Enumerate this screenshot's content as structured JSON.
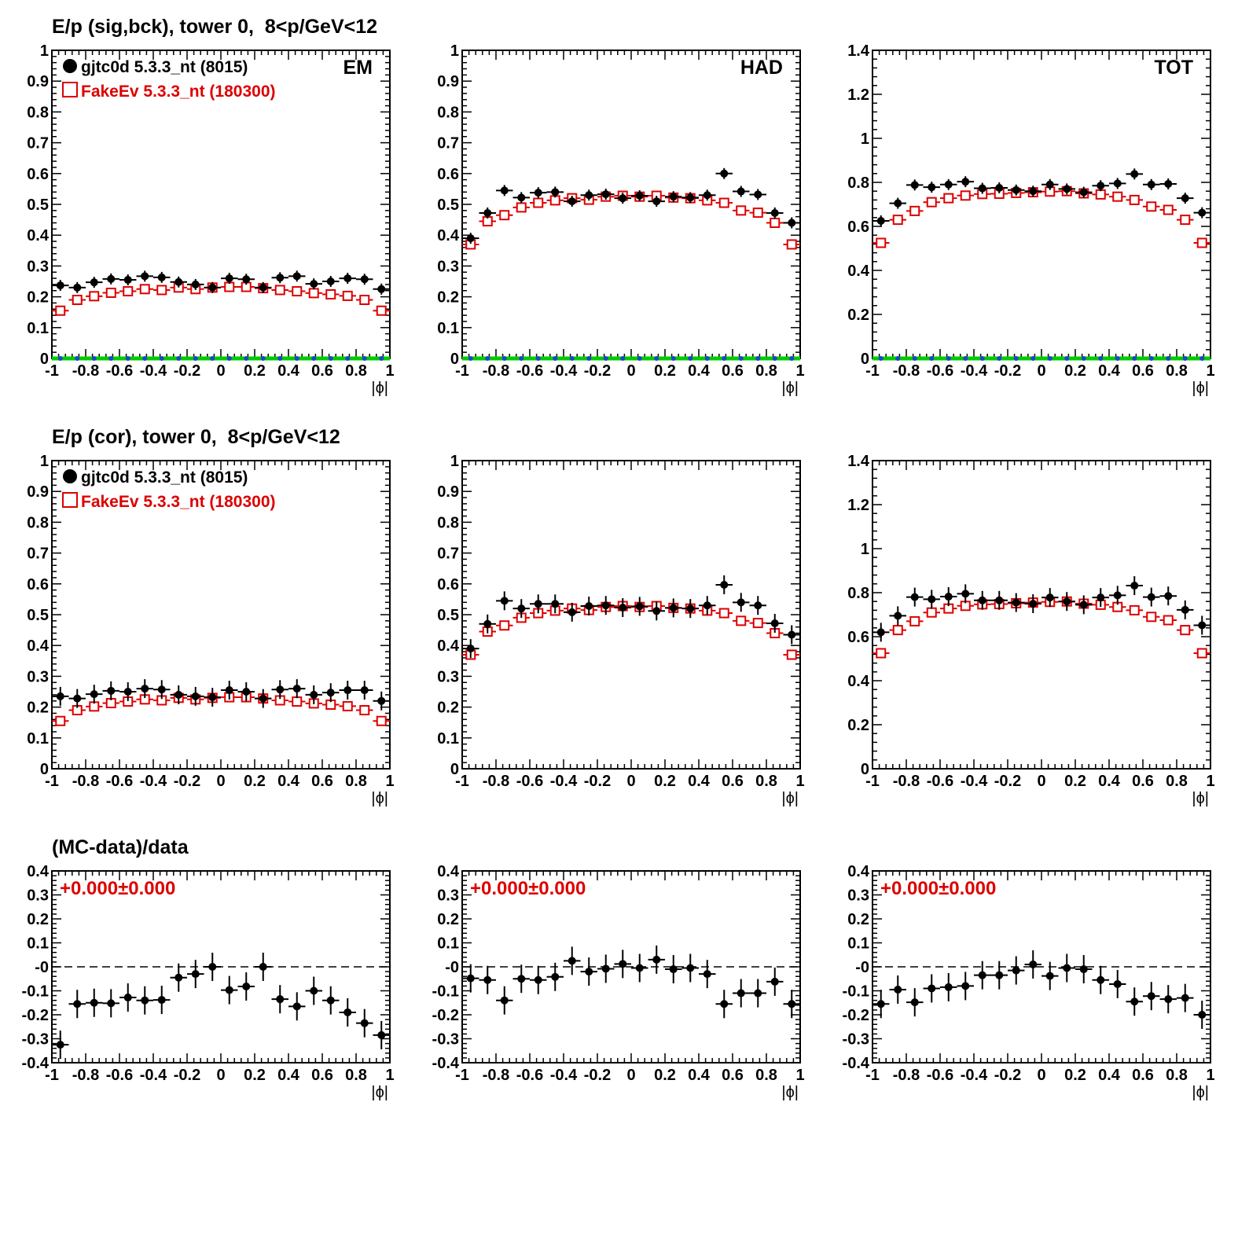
{
  "section_titles": {
    "row1": "E/p (sig,bck), tower 0,  8<p/GeV<12",
    "row2": "E/p (cor), tower 0,  8<p/GeV<12",
    "row3": "(MC-data)/data"
  },
  "legend": {
    "data_label": "gjtc0d 5.3.3_nt (8015)",
    "mc_label": "FakeEv 5.3.3_nt (180300)"
  },
  "panel_labels": {
    "em": "EM",
    "had": "HAD",
    "tot": "TOT"
  },
  "ratio_annotation": "+0.000±0.000",
  "x_axis_label": "|ϕ|",
  "colors": {
    "data": "#000000",
    "mc": "#dd0000",
    "zero_line": "#00cc00",
    "zero_marker": "#2244cc",
    "annotation": "#dd0000"
  },
  "chart_data": [
    {
      "id": "em_sigbck",
      "type": "scatter",
      "x_centers": [
        -0.95,
        -0.85,
        -0.75,
        -0.65,
        -0.55,
        -0.45,
        -0.35,
        -0.25,
        -0.15,
        -0.05,
        0.05,
        0.15,
        0.25,
        0.35,
        0.45,
        0.55,
        0.65,
        0.75,
        0.85,
        0.95
      ],
      "xlim": [
        -1,
        1
      ],
      "ylim": [
        0,
        1
      ],
      "xticks": [
        "-1",
        "-0.8",
        "-0.6",
        "-0.4",
        "-0.2",
        "0",
        "0.2",
        "0.4",
        "0.6",
        "0.8",
        "1"
      ],
      "yticks": [
        "0",
        "0.1",
        "0.2",
        "0.3",
        "0.4",
        "0.5",
        "0.6",
        "0.7",
        "0.8",
        "0.9",
        "1"
      ],
      "series": [
        {
          "name": "gjtc0d 5.3.3_nt (8015)",
          "values": [
            0.237,
            0.23,
            0.247,
            0.258,
            0.255,
            0.267,
            0.263,
            0.248,
            0.24,
            0.23,
            0.26,
            0.257,
            0.23,
            0.262,
            0.267,
            0.242,
            0.25,
            0.26,
            0.257,
            0.225
          ]
        },
        {
          "name": "FakeEv 5.3.3_nt (180300)",
          "values": [
            0.155,
            0.19,
            0.202,
            0.213,
            0.218,
            0.225,
            0.222,
            0.23,
            0.225,
            0.23,
            0.232,
            0.232,
            0.228,
            0.222,
            0.218,
            0.212,
            0.208,
            0.203,
            0.19,
            0.155
          ]
        }
      ],
      "zero_series": true
    },
    {
      "id": "had_sigbck",
      "type": "scatter",
      "x_centers": [
        -0.95,
        -0.85,
        -0.75,
        -0.65,
        -0.55,
        -0.45,
        -0.35,
        -0.25,
        -0.15,
        -0.05,
        0.05,
        0.15,
        0.25,
        0.35,
        0.45,
        0.55,
        0.65,
        0.75,
        0.85,
        0.95
      ],
      "xlim": [
        -1,
        1
      ],
      "ylim": [
        0,
        1
      ],
      "xticks": [
        "-1",
        "-0.8",
        "-0.6",
        "-0.4",
        "-0.2",
        "0",
        "0.2",
        "0.4",
        "0.6",
        "0.8",
        "1"
      ],
      "yticks": [
        "0",
        "0.1",
        "0.2",
        "0.3",
        "0.4",
        "0.5",
        "0.6",
        "0.7",
        "0.8",
        "0.9",
        "1"
      ],
      "series": [
        {
          "name": "gjtc0d 5.3.3_nt (8015)",
          "values": [
            0.39,
            0.472,
            0.545,
            0.522,
            0.538,
            0.54,
            0.51,
            0.53,
            0.533,
            0.52,
            0.528,
            0.51,
            0.525,
            0.522,
            0.53,
            0.6,
            0.542,
            0.532,
            0.472,
            0.44
          ]
        },
        {
          "name": "FakeEv 5.3.3_nt (180300)",
          "values": [
            0.37,
            0.445,
            0.465,
            0.49,
            0.505,
            0.513,
            0.52,
            0.515,
            0.525,
            0.528,
            0.525,
            0.528,
            0.522,
            0.52,
            0.513,
            0.505,
            0.48,
            0.473,
            0.44,
            0.37
          ]
        }
      ],
      "zero_series": true
    },
    {
      "id": "tot_sigbck",
      "type": "scatter",
      "x_centers": [
        -0.95,
        -0.85,
        -0.75,
        -0.65,
        -0.55,
        -0.45,
        -0.35,
        -0.25,
        -0.15,
        -0.05,
        0.05,
        0.15,
        0.25,
        0.35,
        0.45,
        0.55,
        0.65,
        0.75,
        0.85,
        0.95
      ],
      "xlim": [
        -1,
        1
      ],
      "ylim": [
        0,
        1.4
      ],
      "xticks": [
        "-1",
        "-0.8",
        "-0.6",
        "-0.4",
        "-0.2",
        "0",
        "0.2",
        "0.4",
        "0.6",
        "0.8",
        "1"
      ],
      "yticks": [
        "0",
        "0.2",
        "0.4",
        "0.6",
        "0.8",
        "1",
        "1.2",
        "1.4"
      ],
      "series": [
        {
          "name": "gjtc0d 5.3.3_nt (8015)",
          "values": [
            0.625,
            0.705,
            0.788,
            0.778,
            0.79,
            0.803,
            0.773,
            0.775,
            0.765,
            0.76,
            0.79,
            0.77,
            0.755,
            0.785,
            0.795,
            0.838,
            0.79,
            0.793,
            0.728,
            0.662
          ]
        },
        {
          "name": "FakeEv 5.3.3_nt (180300)",
          "values": [
            0.525,
            0.63,
            0.67,
            0.71,
            0.728,
            0.74,
            0.747,
            0.748,
            0.752,
            0.755,
            0.758,
            0.76,
            0.75,
            0.745,
            0.735,
            0.72,
            0.69,
            0.675,
            0.63,
            0.525
          ]
        }
      ],
      "zero_series": true
    },
    {
      "id": "em_cor",
      "type": "scatter",
      "x_centers": [
        -0.95,
        -0.85,
        -0.75,
        -0.65,
        -0.55,
        -0.45,
        -0.35,
        -0.25,
        -0.15,
        -0.05,
        0.05,
        0.15,
        0.25,
        0.35,
        0.45,
        0.55,
        0.65,
        0.75,
        0.85,
        0.95
      ],
      "xlim": [
        -1,
        1
      ],
      "ylim": [
        0,
        1
      ],
      "xticks": [
        "-1",
        "-0.8",
        "-0.6",
        "-0.4",
        "-0.2",
        "0",
        "0.2",
        "0.4",
        "0.6",
        "0.8",
        "1"
      ],
      "yticks": [
        "0",
        "0.1",
        "0.2",
        "0.3",
        "0.4",
        "0.5",
        "0.6",
        "0.7",
        "0.8",
        "0.9",
        "1"
      ],
      "series": [
        {
          "name": "gjtc0d 5.3.3_nt (8015)",
          "values": [
            0.235,
            0.228,
            0.242,
            0.253,
            0.25,
            0.26,
            0.257,
            0.24,
            0.235,
            0.232,
            0.255,
            0.25,
            0.228,
            0.257,
            0.26,
            0.24,
            0.247,
            0.255,
            0.255,
            0.22
          ]
        },
        {
          "name": "FakeEv 5.3.3_nt (180300)",
          "values": [
            0.155,
            0.19,
            0.202,
            0.213,
            0.218,
            0.225,
            0.222,
            0.23,
            0.225,
            0.23,
            0.232,
            0.232,
            0.228,
            0.222,
            0.218,
            0.212,
            0.208,
            0.203,
            0.19,
            0.155
          ]
        }
      ],
      "zero_series": false
    },
    {
      "id": "had_cor",
      "type": "scatter",
      "x_centers": [
        -0.95,
        -0.85,
        -0.75,
        -0.65,
        -0.55,
        -0.45,
        -0.35,
        -0.25,
        -0.15,
        -0.05,
        0.05,
        0.15,
        0.25,
        0.35,
        0.45,
        0.55,
        0.65,
        0.75,
        0.85,
        0.95
      ],
      "xlim": [
        -1,
        1
      ],
      "ylim": [
        0,
        1
      ],
      "xticks": [
        "-1",
        "-0.8",
        "-0.6",
        "-0.4",
        "-0.2",
        "0",
        "0.2",
        "0.4",
        "0.6",
        "0.8",
        "1"
      ],
      "yticks": [
        "0",
        "0.1",
        "0.2",
        "0.3",
        "0.4",
        "0.5",
        "0.6",
        "0.7",
        "0.8",
        "0.9",
        "1"
      ],
      "series": [
        {
          "name": "gjtc0d 5.3.3_nt (8015)",
          "values": [
            0.39,
            0.47,
            0.545,
            0.52,
            0.535,
            0.535,
            0.508,
            0.528,
            0.53,
            0.523,
            0.527,
            0.512,
            0.522,
            0.52,
            0.53,
            0.597,
            0.54,
            0.53,
            0.472,
            0.435
          ]
        },
        {
          "name": "FakeEv 5.3.3_nt (180300)",
          "values": [
            0.37,
            0.445,
            0.465,
            0.49,
            0.505,
            0.513,
            0.52,
            0.515,
            0.525,
            0.528,
            0.525,
            0.528,
            0.522,
            0.52,
            0.513,
            0.505,
            0.48,
            0.473,
            0.44,
            0.37
          ]
        }
      ],
      "zero_series": false
    },
    {
      "id": "tot_cor",
      "type": "scatter",
      "x_centers": [
        -0.95,
        -0.85,
        -0.75,
        -0.65,
        -0.55,
        -0.45,
        -0.35,
        -0.25,
        -0.15,
        -0.05,
        0.05,
        0.15,
        0.25,
        0.35,
        0.45,
        0.55,
        0.65,
        0.75,
        0.85,
        0.95
      ],
      "xlim": [
        -1,
        1
      ],
      "ylim": [
        0,
        1.4
      ],
      "xticks": [
        "-1",
        "-0.8",
        "-0.6",
        "-0.4",
        "-0.2",
        "0",
        "0.2",
        "0.4",
        "0.6",
        "0.8",
        "1"
      ],
      "yticks": [
        "0",
        "0.2",
        "0.4",
        "0.6",
        "0.8",
        "1",
        "1.2",
        "1.4"
      ],
      "series": [
        {
          "name": "gjtc0d 5.3.3_nt (8015)",
          "values": [
            0.62,
            0.695,
            0.78,
            0.77,
            0.782,
            0.795,
            0.765,
            0.765,
            0.755,
            0.75,
            0.778,
            0.76,
            0.745,
            0.778,
            0.788,
            0.832,
            0.78,
            0.785,
            0.722,
            0.652
          ]
        },
        {
          "name": "FakeEv 5.3.3_nt (180300)",
          "values": [
            0.525,
            0.63,
            0.67,
            0.71,
            0.728,
            0.74,
            0.747,
            0.748,
            0.752,
            0.755,
            0.758,
            0.76,
            0.75,
            0.745,
            0.735,
            0.72,
            0.69,
            0.675,
            0.63,
            0.525
          ]
        }
      ],
      "zero_series": false
    },
    {
      "id": "em_ratio",
      "type": "scatter",
      "x_centers": [
        -0.95,
        -0.85,
        -0.75,
        -0.65,
        -0.55,
        -0.45,
        -0.35,
        -0.25,
        -0.15,
        -0.05,
        0.05,
        0.15,
        0.25,
        0.35,
        0.45,
        0.55,
        0.65,
        0.75,
        0.85,
        0.95
      ],
      "xlim": [
        -1,
        1
      ],
      "ylim": [
        -0.4,
        0.4
      ],
      "xticks": [
        "-1",
        "-0.8",
        "-0.6",
        "-0.4",
        "-0.2",
        "0",
        "0.2",
        "0.4",
        "0.6",
        "0.8",
        "1"
      ],
      "yticks": [
        "-0.4",
        "-0.3",
        "-0.2",
        "-0.1",
        "-0",
        "0.1",
        "0.2",
        "0.3",
        "0.4"
      ],
      "series": [
        {
          "name": "",
          "values": [
            -0.325,
            -0.155,
            -0.15,
            -0.152,
            -0.128,
            -0.14,
            -0.138,
            -0.045,
            -0.03,
            0.0,
            -0.097,
            -0.082,
            0.0,
            -0.135,
            -0.165,
            -0.1,
            -0.14,
            -0.19,
            -0.235,
            -0.285
          ]
        }
      ],
      "reference_line": 0
    },
    {
      "id": "had_ratio",
      "type": "scatter",
      "x_centers": [
        -0.95,
        -0.85,
        -0.75,
        -0.65,
        -0.55,
        -0.45,
        -0.35,
        -0.25,
        -0.15,
        -0.05,
        0.05,
        0.15,
        0.25,
        0.35,
        0.45,
        0.55,
        0.65,
        0.75,
        0.85,
        0.95
      ],
      "xlim": [
        -1,
        1
      ],
      "ylim": [
        -0.4,
        0.4
      ],
      "xticks": [
        "-1",
        "-0.8",
        "-0.6",
        "-0.4",
        "-0.2",
        "0",
        "0.2",
        "0.4",
        "0.6",
        "0.8",
        "1"
      ],
      "yticks": [
        "-0.4",
        "-0.3",
        "-0.2",
        "-0.1",
        "-0",
        "0.1",
        "0.2",
        "0.3",
        "0.4"
      ],
      "series": [
        {
          "name": "",
          "values": [
            -0.048,
            -0.055,
            -0.14,
            -0.05,
            -0.055,
            -0.042,
            0.025,
            -0.02,
            -0.008,
            0.012,
            -0.005,
            0.03,
            -0.01,
            -0.005,
            -0.03,
            -0.155,
            -0.11,
            -0.11,
            -0.062,
            -0.155
          ]
        }
      ],
      "reference_line": 0
    },
    {
      "id": "tot_ratio",
      "type": "scatter",
      "x_centers": [
        -0.95,
        -0.85,
        -0.75,
        -0.65,
        -0.55,
        -0.45,
        -0.35,
        -0.25,
        -0.15,
        -0.05,
        0.05,
        0.15,
        0.25,
        0.35,
        0.45,
        0.55,
        0.65,
        0.75,
        0.85,
        0.95
      ],
      "xlim": [
        -1,
        1
      ],
      "ylim": [
        -0.4,
        0.4
      ],
      "xticks": [
        "-1",
        "-0.8",
        "-0.6",
        "-0.4",
        "-0.2",
        "0",
        "0.2",
        "0.4",
        "0.6",
        "0.8",
        "1"
      ],
      "yticks": [
        "-0.4",
        "-0.3",
        "-0.2",
        "-0.1",
        "-0",
        "0.1",
        "0.2",
        "0.3",
        "0.4"
      ],
      "series": [
        {
          "name": "",
          "values": [
            -0.155,
            -0.095,
            -0.148,
            -0.09,
            -0.085,
            -0.08,
            -0.035,
            -0.035,
            -0.015,
            0.01,
            -0.038,
            -0.005,
            -0.01,
            -0.055,
            -0.072,
            -0.145,
            -0.122,
            -0.135,
            -0.13,
            -0.2
          ]
        }
      ],
      "reference_line": 0
    }
  ]
}
